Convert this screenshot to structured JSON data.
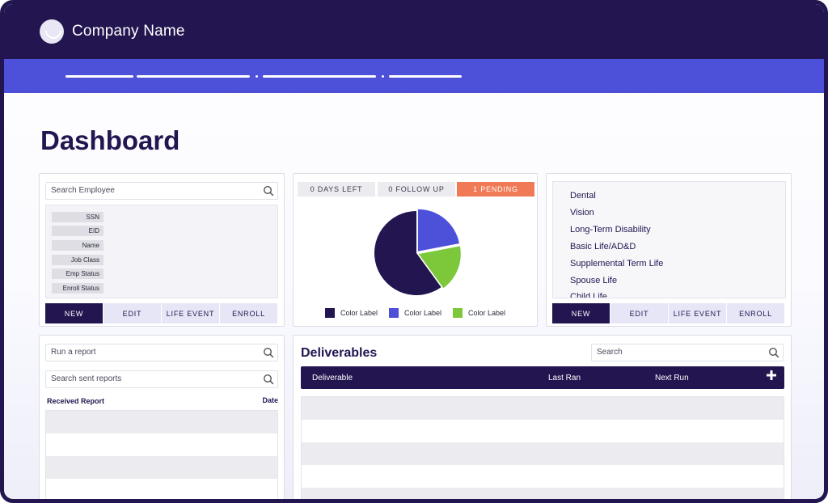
{
  "header": {
    "company_name": "Company Name"
  },
  "page": {
    "title": "Dashboard"
  },
  "employee_panel": {
    "search_placeholder": "Search Employee",
    "fields": [
      "SSN",
      "EID",
      "Name",
      "Job Class",
      "Emp Status",
      "Enroll Status"
    ],
    "buttons": [
      "NEW",
      "EDIT",
      "LIFE EVENT",
      "ENROLL"
    ]
  },
  "status_panel": {
    "pills": [
      "0 DAYS LEFT",
      "0 FOLLOW UP",
      "1 PENDING"
    ],
    "legend": [
      "Color Label",
      "Color Label",
      "Color Label"
    ]
  },
  "chart_data": {
    "type": "pie",
    "values": [
      0.6,
      0.22,
      0.18
    ],
    "colors": [
      "#231550",
      "#4d50d9",
      "#7cc83a"
    ],
    "labels": [
      "Color Label",
      "Color Label",
      "Color Label"
    ]
  },
  "benefits_panel": {
    "items": [
      "Dental",
      "Vision",
      "Long-Term Disability",
      "Basic Life/AD&D",
      "Supplemental Term Life",
      "Spouse Life",
      "Child Life"
    ],
    "buttons": [
      "NEW",
      "EDIT",
      "LIFE EVENT",
      "ENROLL"
    ]
  },
  "reports_panel": {
    "run_placeholder": "Run a report",
    "sent_placeholder": "Search sent reports",
    "received_label": "Received Report",
    "date_label": "Date"
  },
  "deliverables_panel": {
    "title": "Deliverables",
    "search_placeholder": "Search",
    "columns": [
      "Deliverable",
      "Last Ran",
      "Next Run"
    ]
  },
  "colors": {
    "primary": "#231550",
    "accent": "#4d50d9",
    "pending": "#f07a56",
    "green": "#7cc83a"
  }
}
